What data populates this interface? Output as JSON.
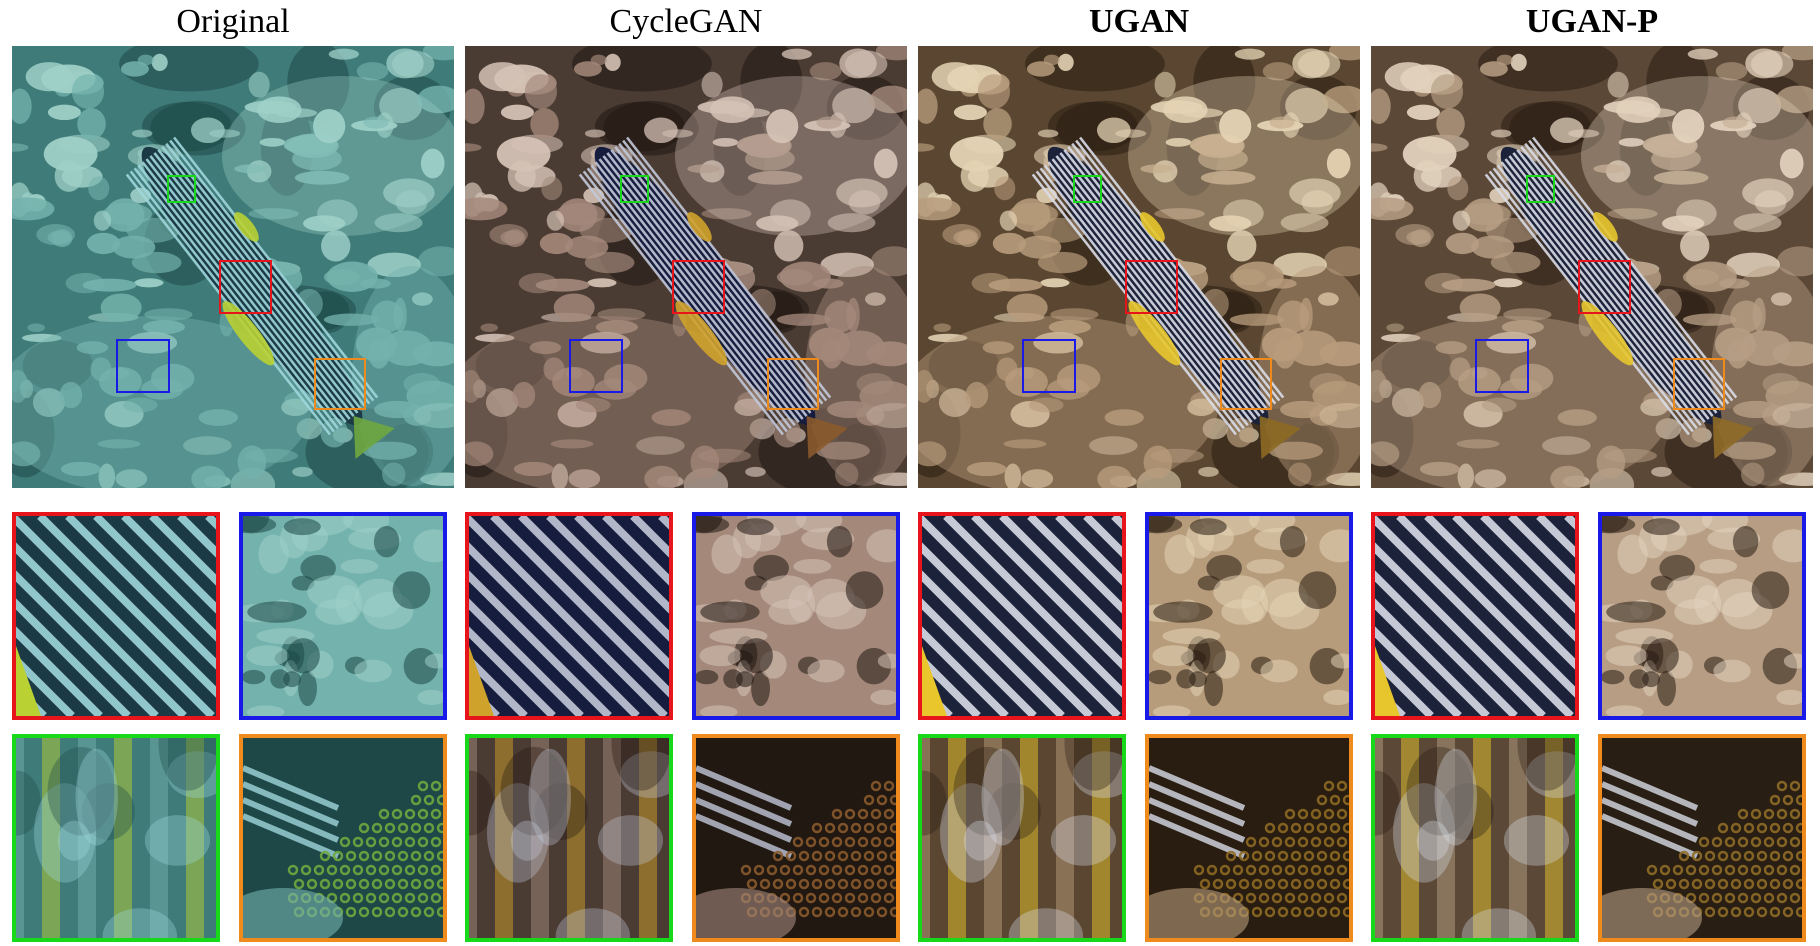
{
  "figure": {
    "columns": [
      {
        "id": "original",
        "title": "Original",
        "bold": false,
        "palette": {
          "bg": "#3f7b78",
          "dark": "#1d4847",
          "coral": "#74b2ad",
          "coral_light": "#9fd0c8",
          "stripe_dark": "#1b3a45",
          "stripe_light": "#9fd6dc",
          "accent": "#b9d133",
          "fin": "#6fa73f"
        }
      },
      {
        "id": "cyclegan",
        "title": "CycleGAN",
        "bold": false,
        "palette": {
          "bg": "#4a3b33",
          "dark": "#211812",
          "coral": "#a4897b",
          "coral_light": "#d5c2b6",
          "stripe_dark": "#151c3d",
          "stripe_light": "#c2c8d8",
          "accent": "#cfa22b",
          "fin": "#8a5a2c"
        }
      },
      {
        "id": "ugan",
        "title": "UGAN",
        "bold": true,
        "palette": {
          "bg": "#5a4631",
          "dark": "#291d11",
          "coral": "#b79c7c",
          "coral_light": "#e4d3b4",
          "stripe_dark": "#1c2239",
          "stripe_light": "#d9dde8",
          "accent": "#e8c62c",
          "fin": "#8d6a24"
        }
      },
      {
        "id": "ugan-p",
        "title": "UGAN-P",
        "bold": true,
        "palette": {
          "bg": "#5b4836",
          "dark": "#291e14",
          "coral": "#b69d84",
          "coral_light": "#e2d2bd",
          "stripe_dark": "#1c2239",
          "stripe_light": "#d8dce6",
          "accent": "#e7c52d",
          "fin": "#8e6c27"
        }
      }
    ],
    "highlight_colors": {
      "red": "#e8141b",
      "blue": "#1a1ae8",
      "green": "#18d81a",
      "orange": "#ef8a1c"
    },
    "crops": [
      {
        "id": "red",
        "content": "stripes",
        "color_key": "red"
      },
      {
        "id": "blue",
        "content": "coral",
        "color_key": "blue"
      },
      {
        "id": "green",
        "content": "blur",
        "color_key": "green"
      },
      {
        "id": "orange",
        "content": "tail",
        "color_key": "orange"
      }
    ]
  }
}
